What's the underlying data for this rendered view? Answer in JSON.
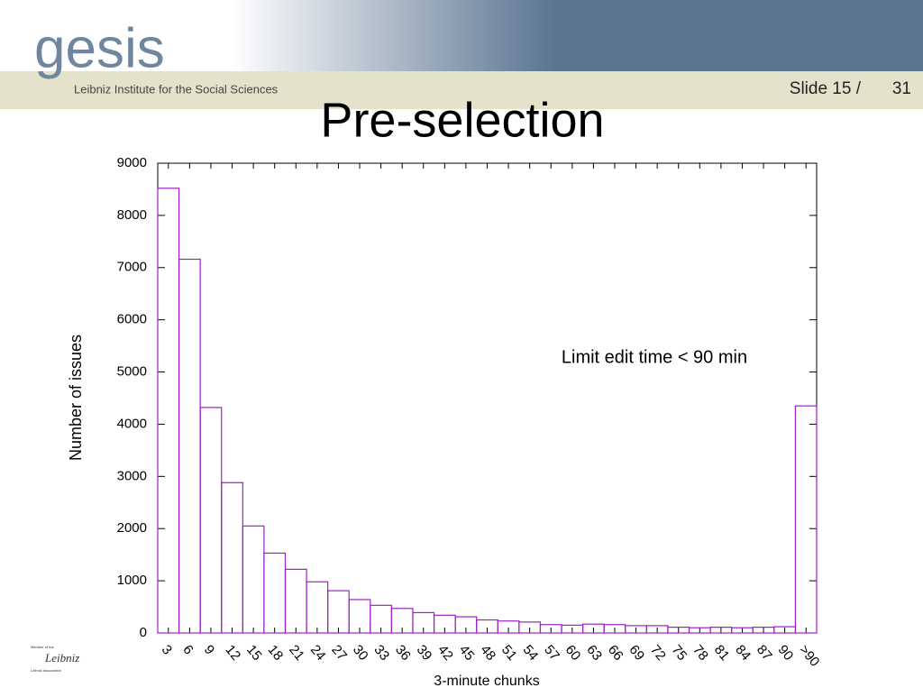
{
  "header": {
    "logo": "gesis",
    "logo_subtitle": "Leibniz Institute for the Social Sciences",
    "slide_label": "Slide 15 /",
    "slide_total": "31"
  },
  "footer_logo": {
    "member": "Member of the",
    "name": "Leibniz",
    "association": "Leibniz Association"
  },
  "chart_data": {
    "type": "bar",
    "title": "Pre-selection",
    "x_label": "3-minute chunks",
    "y_label": "Number of issues",
    "annotation": "Limit edit time < 90 min",
    "categories": [
      "3",
      "6",
      "9",
      "12",
      "15",
      "18",
      "21",
      "24",
      "27",
      "30",
      "33",
      "36",
      "39",
      "42",
      "45",
      "48",
      "51",
      "54",
      "57",
      "60",
      "63",
      "66",
      "69",
      "72",
      "75",
      "78",
      "81",
      "84",
      "87",
      "90",
      ">90"
    ],
    "values": [
      8520,
      7160,
      4320,
      2880,
      2050,
      1530,
      1220,
      980,
      810,
      640,
      530,
      470,
      390,
      340,
      310,
      250,
      230,
      210,
      160,
      150,
      170,
      160,
      140,
      140,
      110,
      100,
      110,
      100,
      110,
      120,
      4350
    ],
    "color": "#a020c8",
    "ylim": [
      0,
      9000
    ],
    "yticks": [
      0,
      1000,
      2000,
      3000,
      4000,
      5000,
      6000,
      7000,
      8000,
      9000
    ]
  }
}
